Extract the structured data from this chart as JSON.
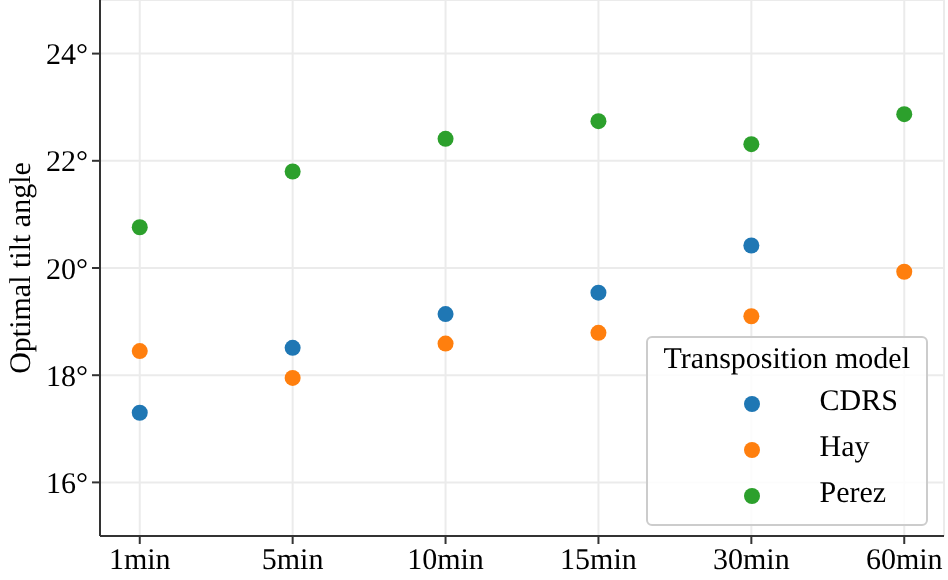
{
  "chart_data": {
    "type": "scatter",
    "ylabel": "Optimal tilt angle",
    "legend_title": "Transposition model",
    "categories": [
      "1min",
      "5min",
      "10min",
      "15min",
      "30min",
      "60min"
    ],
    "series": [
      {
        "name": "CDRS",
        "color": "#1f77b4",
        "values": [
          17.3,
          18.51,
          19.14,
          19.54,
          20.42,
          null
        ]
      },
      {
        "name": "Hay",
        "color": "#ff7f0e",
        "values": [
          18.45,
          17.95,
          18.59,
          18.79,
          19.1,
          19.93
        ]
      },
      {
        "name": "Perez",
        "color": "#2ca02c",
        "values": [
          20.76,
          21.8,
          22.41,
          22.74,
          22.31,
          22.87
        ]
      }
    ],
    "ylim": [
      15,
      25
    ],
    "yticks": [
      {
        "value": 16,
        "label": "16°"
      },
      {
        "value": 18,
        "label": "18°"
      },
      {
        "value": 20,
        "label": "20°"
      },
      {
        "value": 22,
        "label": "22°"
      },
      {
        "value": 24,
        "label": "24°"
      }
    ],
    "grid": true,
    "legend": "bottom right",
    "marker": "circle"
  }
}
